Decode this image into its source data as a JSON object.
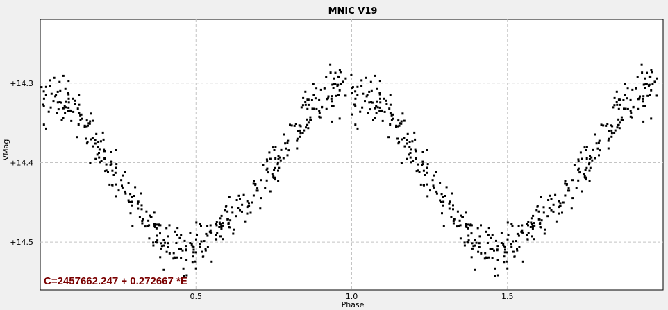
{
  "chart_data": {
    "type": "scatter",
    "title": "MNIC V19",
    "xlabel": "Phase",
    "ylabel": "VMag",
    "xlim": [
      0.0,
      2.0
    ],
    "ylim": [
      14.56,
      14.22
    ],
    "y_inverted": true,
    "grid": true,
    "x_ticks": [
      0.5,
      1.0,
      1.5
    ],
    "x_tick_labels": [
      "0.5",
      "1.0",
      "1.5"
    ],
    "y_ticks": [
      14.3,
      14.4,
      14.5
    ],
    "y_tick_labels": [
      "+14.3",
      "+14.4",
      "+14.5"
    ],
    "annotation": "C=2457662.247 + 0.272667 *E",
    "annotation_color": "#7a0000",
    "marker_color": "#000000",
    "light_curve": {
      "period_phase": 1.0,
      "description": "phase-folded light curve shown twice (phase 0-2)",
      "phase": [
        0.0,
        0.05,
        0.1,
        0.15,
        0.2,
        0.25,
        0.3,
        0.35,
        0.4,
        0.45,
        0.5,
        0.55,
        0.6,
        0.65,
        0.7,
        0.75,
        0.8,
        0.85,
        0.9,
        0.95,
        1.0
      ],
      "vmag": [
        14.32,
        14.32,
        14.33,
        14.36,
        14.39,
        14.42,
        14.45,
        14.48,
        14.505,
        14.51,
        14.505,
        14.49,
        14.475,
        14.455,
        14.43,
        14.405,
        14.375,
        14.345,
        14.32,
        14.305,
        14.31
      ],
      "scatter_mag": 0.025,
      "points_per_cycle": 440
    }
  }
}
